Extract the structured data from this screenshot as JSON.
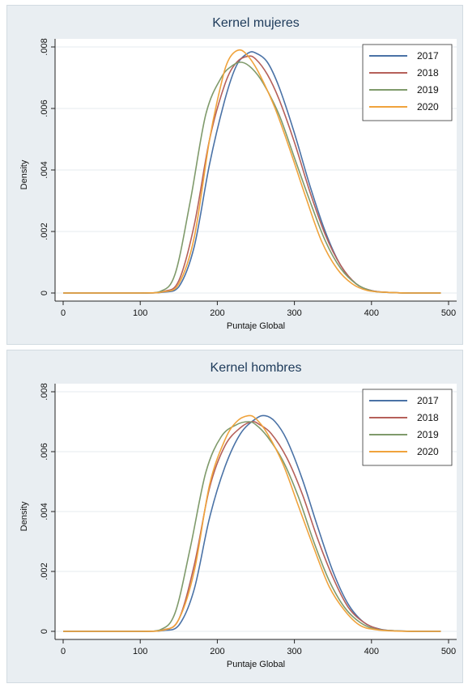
{
  "chart_data": [
    {
      "type": "line",
      "title": "Kernel mujeres",
      "xlabel": "Puntaje Global",
      "ylabel": "Density",
      "xlim": [
        0,
        500
      ],
      "ylim": [
        0,
        0.008
      ],
      "xticks": [
        "0",
        "100",
        "200",
        "300",
        "400",
        "500"
      ],
      "yticks": [
        "0",
        ".002",
        ".004",
        ".006",
        ".008"
      ],
      "legend": "top-right",
      "grid": true,
      "series": [
        {
          "name": "2017",
          "color": "#4a72a6",
          "x": [
            0,
            100,
            130,
            150,
            170,
            190,
            210,
            225,
            240,
            250,
            265,
            280,
            300,
            320,
            340,
            360,
            380,
            400,
            420,
            450,
            490
          ],
          "y": [
            0,
            0,
            3e-05,
            0.0002,
            0.0015,
            0.0042,
            0.0063,
            0.0074,
            0.0078,
            0.0078,
            0.0075,
            0.0067,
            0.0052,
            0.0035,
            0.002,
            0.0009,
            0.0003,
            8e-05,
            2e-05,
            0,
            0
          ]
        },
        {
          "name": "2018",
          "color": "#b5605a",
          "x": [
            0,
            100,
            130,
            150,
            170,
            190,
            210,
            225,
            240,
            250,
            265,
            280,
            300,
            320,
            340,
            360,
            380,
            400,
            420,
            450,
            490
          ],
          "y": [
            0,
            0,
            5e-05,
            0.0004,
            0.0022,
            0.005,
            0.0068,
            0.0075,
            0.0077,
            0.0076,
            0.0071,
            0.0063,
            0.0049,
            0.0033,
            0.0019,
            0.0009,
            0.0003,
            8e-05,
            2e-05,
            0,
            0
          ]
        },
        {
          "name": "2019",
          "color": "#7f9a6b",
          "x": [
            0,
            100,
            125,
            145,
            165,
            185,
            205,
            220,
            232,
            245,
            260,
            280,
            300,
            320,
            340,
            360,
            380,
            400,
            420,
            450,
            490
          ],
          "y": [
            0,
            0,
            4e-05,
            0.0006,
            0.003,
            0.0058,
            0.007,
            0.0074,
            0.0075,
            0.0073,
            0.0068,
            0.0058,
            0.0044,
            0.003,
            0.0017,
            0.0008,
            0.0003,
            7e-05,
            2e-05,
            0,
            0
          ]
        },
        {
          "name": "2020",
          "color": "#f0a33c",
          "x": [
            0,
            100,
            130,
            150,
            170,
            190,
            205,
            215,
            228,
            240,
            255,
            275,
            295,
            315,
            335,
            355,
            375,
            395,
            420,
            450,
            490
          ],
          "y": [
            0,
            0,
            4e-05,
            0.0003,
            0.0018,
            0.005,
            0.0068,
            0.0076,
            0.0079,
            0.0077,
            0.0071,
            0.006,
            0.0046,
            0.0031,
            0.0017,
            0.0008,
            0.0003,
            8e-05,
            2e-05,
            0,
            0
          ]
        }
      ]
    },
    {
      "type": "line",
      "title": "Kernel hombres",
      "xlabel": "Puntaje Global",
      "ylabel": "Density",
      "xlim": [
        0,
        500
      ],
      "ylim": [
        0,
        0.008
      ],
      "xticks": [
        "0",
        "100",
        "200",
        "300",
        "400",
        "500"
      ],
      "yticks": [
        "0",
        ".002",
        ".004",
        ".006",
        ".008"
      ],
      "legend": "top-right",
      "grid": true,
      "series": [
        {
          "name": "2017",
          "color": "#4a72a6",
          "x": [
            0,
            100,
            130,
            150,
            170,
            190,
            210,
            230,
            250,
            262,
            275,
            290,
            310,
            330,
            350,
            370,
            390,
            410,
            430,
            460,
            490
          ],
          "y": [
            0,
            0,
            3e-05,
            0.0002,
            0.0014,
            0.0038,
            0.0055,
            0.0066,
            0.0071,
            0.0072,
            0.007,
            0.0064,
            0.0051,
            0.0035,
            0.002,
            0.0009,
            0.0003,
            8e-05,
            2e-05,
            0,
            0
          ]
        },
        {
          "name": "2018",
          "color": "#b5605a",
          "x": [
            0,
            100,
            130,
            150,
            170,
            190,
            210,
            230,
            245,
            255,
            270,
            290,
            310,
            330,
            350,
            370,
            390,
            410,
            430,
            460,
            490
          ],
          "y": [
            0,
            0,
            5e-05,
            0.0004,
            0.0022,
            0.0048,
            0.0062,
            0.0068,
            0.007,
            0.0069,
            0.0066,
            0.0058,
            0.0046,
            0.0031,
            0.0018,
            0.0008,
            0.0003,
            7e-05,
            2e-05,
            0,
            0
          ]
        },
        {
          "name": "2019",
          "color": "#7f9a6b",
          "x": [
            0,
            100,
            125,
            145,
            165,
            185,
            205,
            225,
            240,
            250,
            265,
            285,
            305,
            325,
            345,
            365,
            385,
            405,
            430,
            460,
            490
          ],
          "y": [
            0,
            0,
            4e-05,
            0.0006,
            0.0028,
            0.0053,
            0.0065,
            0.0069,
            0.007,
            0.0069,
            0.0065,
            0.0057,
            0.0045,
            0.003,
            0.0017,
            0.0008,
            0.0003,
            7e-05,
            2e-05,
            0,
            0
          ]
        },
        {
          "name": "2020",
          "color": "#f0a33c",
          "x": [
            0,
            100,
            130,
            150,
            170,
            190,
            210,
            225,
            240,
            250,
            265,
            285,
            305,
            325,
            345,
            365,
            385,
            405,
            430,
            460,
            490
          ],
          "y": [
            0,
            0,
            4e-05,
            0.0004,
            0.002,
            0.0049,
            0.0064,
            0.007,
            0.0072,
            0.0071,
            0.0066,
            0.0056,
            0.0042,
            0.0028,
            0.0015,
            0.0007,
            0.0002,
            6e-05,
            1e-05,
            0,
            0
          ]
        }
      ]
    }
  ]
}
